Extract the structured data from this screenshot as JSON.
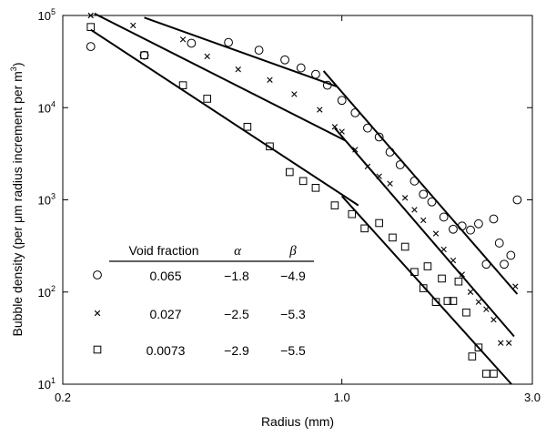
{
  "chart_data": {
    "type": "scatter",
    "xlabel": "Radius (mm)",
    "ylabel_prefix": "Bubble density (per ",
    "ylabel_mu": "μ",
    "ylabel_mid": "m radius increment per m",
    "ylabel_sup": "3",
    "ylabel_suffix": ")",
    "x_scale": "log",
    "y_scale": "log",
    "xlim": [
      0.2,
      3.0
    ],
    "ylim": [
      10,
      100000
    ],
    "x_ticks": [
      {
        "value": 0.2,
        "label": "0.2"
      },
      {
        "value": 1.0,
        "label": "1.0"
      },
      {
        "value": 3.0,
        "label": "3.0"
      }
    ],
    "y_ticks": [
      {
        "value": 10,
        "base": "10",
        "exp": "1"
      },
      {
        "value": 100,
        "base": "10",
        "exp": "2"
      },
      {
        "value": 1000,
        "base": "10",
        "exp": "3"
      },
      {
        "value": 10000,
        "base": "10",
        "exp": "4"
      },
      {
        "value": 100000,
        "base": "10",
        "exp": "5"
      }
    ],
    "grid": false,
    "legend": {
      "placement": "lower-left",
      "headers": {
        "void_fraction": "Void fraction",
        "alpha": "α",
        "beta": "β"
      },
      "rows": [
        {
          "marker": "circle",
          "void_fraction": "0.065",
          "alpha": "−1.8",
          "beta": "−4.9"
        },
        {
          "marker": "cross",
          "void_fraction": "0.027",
          "alpha": "−2.5",
          "beta": "−5.3"
        },
        {
          "marker": "square",
          "void_fraction": "0.0073",
          "alpha": "−2.9",
          "beta": "−5.5"
        }
      ]
    },
    "series": [
      {
        "marker": "circle",
        "points": [
          [
            0.235,
            46000
          ],
          [
            0.32,
            37000
          ],
          [
            0.42,
            50000
          ],
          [
            0.52,
            51000
          ],
          [
            0.62,
            42000
          ],
          [
            0.72,
            33000
          ],
          [
            0.79,
            27000
          ],
          [
            0.86,
            23000
          ],
          [
            0.92,
            17500
          ],
          [
            1.0,
            12000
          ],
          [
            1.08,
            8800
          ],
          [
            1.16,
            6000
          ],
          [
            1.24,
            4800
          ],
          [
            1.32,
            3300
          ],
          [
            1.4,
            2400
          ],
          [
            1.52,
            1600
          ],
          [
            1.6,
            1150
          ],
          [
            1.68,
            950
          ],
          [
            1.8,
            650
          ],
          [
            1.9,
            480
          ],
          [
            2.0,
            520
          ],
          [
            2.1,
            470
          ],
          [
            2.2,
            550
          ],
          [
            2.3,
            200
          ],
          [
            2.4,
            620
          ],
          [
            2.48,
            340
          ],
          [
            2.55,
            200
          ],
          [
            2.65,
            250
          ],
          [
            2.75,
            1000
          ]
        ],
        "fits": [
          {
            "x": [
              0.32,
              0.97
            ],
            "y": [
              95000,
              17000
            ]
          },
          {
            "x": [
              0.9,
              2.75
            ],
            "y": [
              25000,
              95
            ]
          }
        ]
      },
      {
        "marker": "cross",
        "points": [
          [
            0.235,
            100000
          ],
          [
            0.3,
            78000
          ],
          [
            0.4,
            55000
          ],
          [
            0.46,
            36000
          ],
          [
            0.55,
            26000
          ],
          [
            0.66,
            20000
          ],
          [
            0.76,
            14000
          ],
          [
            0.88,
            9500
          ],
          [
            0.96,
            6200
          ],
          [
            1.0,
            5500
          ],
          [
            1.08,
            3500
          ],
          [
            1.16,
            2300
          ],
          [
            1.24,
            1800
          ],
          [
            1.32,
            1500
          ],
          [
            1.44,
            1050
          ],
          [
            1.52,
            780
          ],
          [
            1.6,
            600
          ],
          [
            1.72,
            430
          ],
          [
            1.8,
            290
          ],
          [
            1.9,
            220
          ],
          [
            2.0,
            155
          ],
          [
            2.1,
            100
          ],
          [
            2.2,
            78
          ],
          [
            2.3,
            65
          ],
          [
            2.4,
            50
          ],
          [
            2.5,
            28
          ],
          [
            2.62,
            28
          ],
          [
            2.72,
            115
          ]
        ],
        "fits": [
          {
            "x": [
              0.24,
              1.02
            ],
            "y": [
              105000,
              4400
            ]
          },
          {
            "x": [
              0.96,
              2.7
            ],
            "y": [
              6000,
              33
            ]
          }
        ]
      },
      {
        "marker": "square",
        "points": [
          [
            0.235,
            75000
          ],
          [
            0.32,
            37000
          ],
          [
            0.4,
            17500
          ],
          [
            0.46,
            12500
          ],
          [
            0.58,
            6200
          ],
          [
            0.66,
            3800
          ],
          [
            0.74,
            2000
          ],
          [
            0.8,
            1600
          ],
          [
            0.86,
            1350
          ],
          [
            0.96,
            870
          ],
          [
            1.06,
            700
          ],
          [
            1.14,
            490
          ],
          [
            1.24,
            560
          ],
          [
            1.34,
            390
          ],
          [
            1.44,
            310
          ],
          [
            1.52,
            165
          ],
          [
            1.6,
            110
          ],
          [
            1.64,
            190
          ],
          [
            1.72,
            78
          ],
          [
            1.78,
            140
          ],
          [
            1.84,
            80
          ],
          [
            1.9,
            80
          ],
          [
            1.96,
            130
          ],
          [
            2.05,
            60
          ],
          [
            2.12,
            20
          ],
          [
            2.2,
            25
          ],
          [
            2.3,
            13
          ],
          [
            2.4,
            13
          ]
        ],
        "fits": [
          {
            "x": [
              0.235,
              1.1
            ],
            "y": [
              70000,
              870
            ]
          },
          {
            "x": [
              1.0,
              2.66
            ],
            "y": [
              1100,
              10
            ]
          }
        ]
      }
    ]
  }
}
